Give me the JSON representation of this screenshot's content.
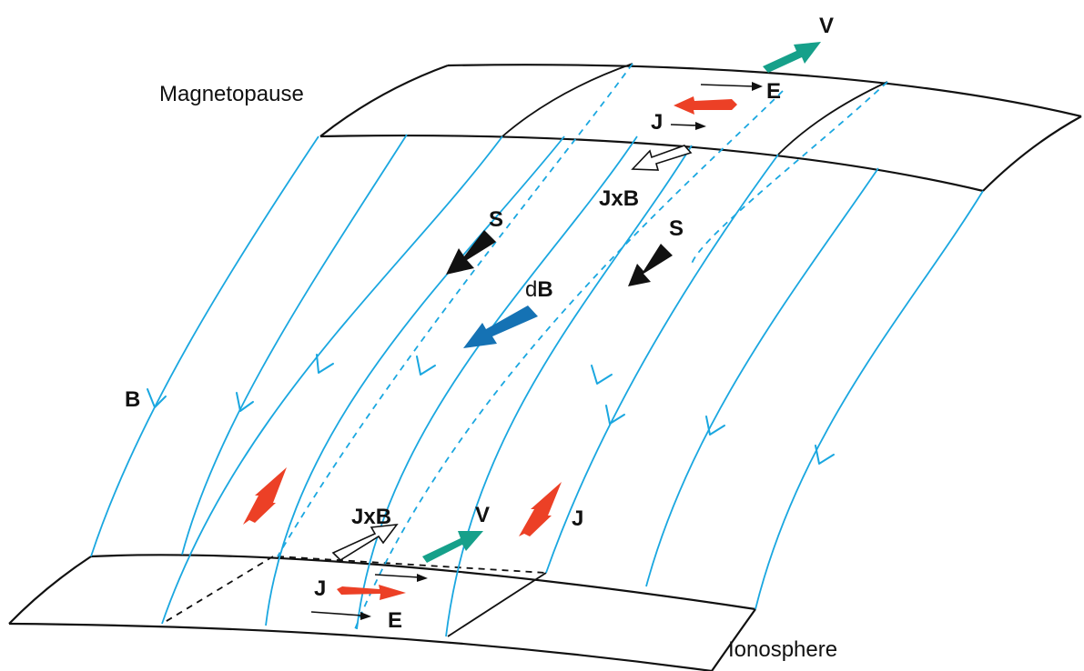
{
  "labels": {
    "magnetopause": "Magnetopause",
    "ionosphere": "Ionosphere",
    "v_top": "V",
    "e_top": "E",
    "j_top": "J",
    "jxb_top": "JxB",
    "s_left": "S",
    "s_right": "S",
    "db_prefix": "d",
    "db_vec": "B",
    "b_field": "B",
    "jxb_bottom": "JxB",
    "v_bottom": "V",
    "j_right": "J",
    "j_bottom": "J",
    "e_bottom": "E"
  },
  "colors": {
    "field_line": "#1aa7e0",
    "velocity": "#16a08a",
    "current": "#ec4026",
    "poynting": "#111111",
    "delta_b": "#1572b4",
    "frame": "#111111"
  }
}
